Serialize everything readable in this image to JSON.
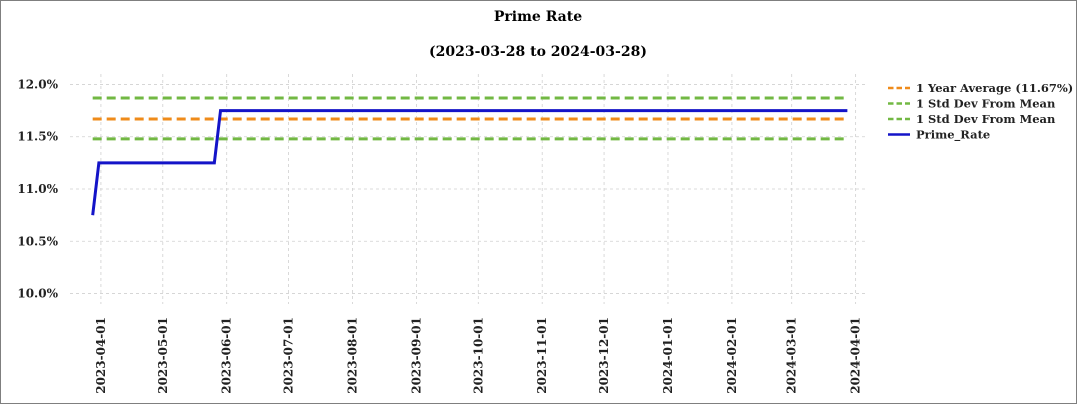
{
  "chart_data": {
    "type": "line",
    "title": "Prime Rate",
    "subtitle": "(2023-03-28 to 2024-03-28)",
    "xlabel": "",
    "ylabel": "",
    "x_range": [
      "2023-03-17",
      "2024-04-07"
    ],
    "ylim": [
      9.9,
      12.1
    ],
    "y_ticks": [
      10.0,
      10.5,
      11.0,
      11.5,
      12.0
    ],
    "y_tick_labels": [
      "10.0%",
      "10.5%",
      "11.0%",
      "11.5%",
      "12.0%"
    ],
    "x_ticks": [
      "2023-04-01",
      "2023-05-01",
      "2023-06-01",
      "2023-07-01",
      "2023-08-01",
      "2023-09-01",
      "2023-10-01",
      "2023-11-01",
      "2023-12-01",
      "2024-01-01",
      "2024-02-01",
      "2024-03-01",
      "2024-04-01"
    ],
    "grid": true,
    "legend_position": "right",
    "series": [
      {
        "name": "1 Year Average (11.67%)",
        "style": "dashed",
        "color": "#ef8b1a",
        "points": [
          [
            "2023-03-28",
            11.67
          ],
          [
            "2024-03-28",
            11.67
          ]
        ]
      },
      {
        "name": "1 Std Dev From Mean",
        "style": "dashed",
        "color": "#72b843",
        "points": [
          [
            "2023-03-28",
            11.87
          ],
          [
            "2024-03-28",
            11.87
          ]
        ]
      },
      {
        "name": "1 Std Dev From Mean",
        "style": "dashed",
        "color": "#72b843",
        "points": [
          [
            "2023-03-28",
            11.48
          ],
          [
            "2024-03-28",
            11.48
          ]
        ]
      },
      {
        "name": "Prime_Rate",
        "style": "solid",
        "color": "#1414c8",
        "points": [
          [
            "2023-03-28",
            10.75
          ],
          [
            "2023-03-31",
            11.25
          ],
          [
            "2023-05-26",
            11.25
          ],
          [
            "2023-05-29",
            11.75
          ],
          [
            "2024-03-28",
            11.75
          ]
        ]
      }
    ]
  }
}
